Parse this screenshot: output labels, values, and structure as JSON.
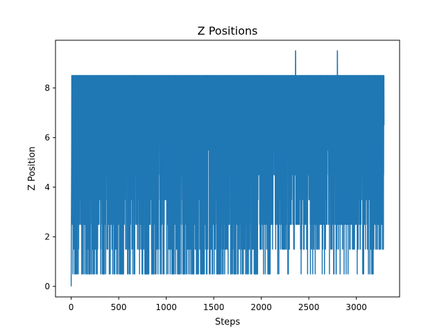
{
  "chart_data": {
    "type": "line",
    "title": "Z Positions",
    "xlabel": "Steps",
    "ylabel": "Z Position",
    "xlim": [
      -165,
      3455
    ],
    "ylim": [
      -0.425,
      9.925
    ],
    "x_ticks": [
      0,
      500,
      1000,
      1500,
      2000,
      2500,
      3000
    ],
    "y_ticks": [
      0,
      2,
      4,
      6,
      8
    ],
    "x_tick_labels": [
      "0",
      "500",
      "1000",
      "1500",
      "2000",
      "2500",
      "3000"
    ],
    "y_tick_labels": [
      "0",
      "2",
      "4",
      "6",
      "8"
    ],
    "grid": false,
    "legend": "none",
    "series": [
      {
        "color": "#1f77b4",
        "summary": {
          "n_steps": 3292,
          "start_value": 0,
          "typical_max": 8.5,
          "typical_min": 0.5,
          "peak_value": 9.5,
          "peak_steps": [
            2360,
            2800
          ],
          "last_value": 6.5
        }
      }
    ]
  },
  "colors": {
    "line": "#1f77b4",
    "axes": "#000000",
    "background": "#ffffff"
  }
}
